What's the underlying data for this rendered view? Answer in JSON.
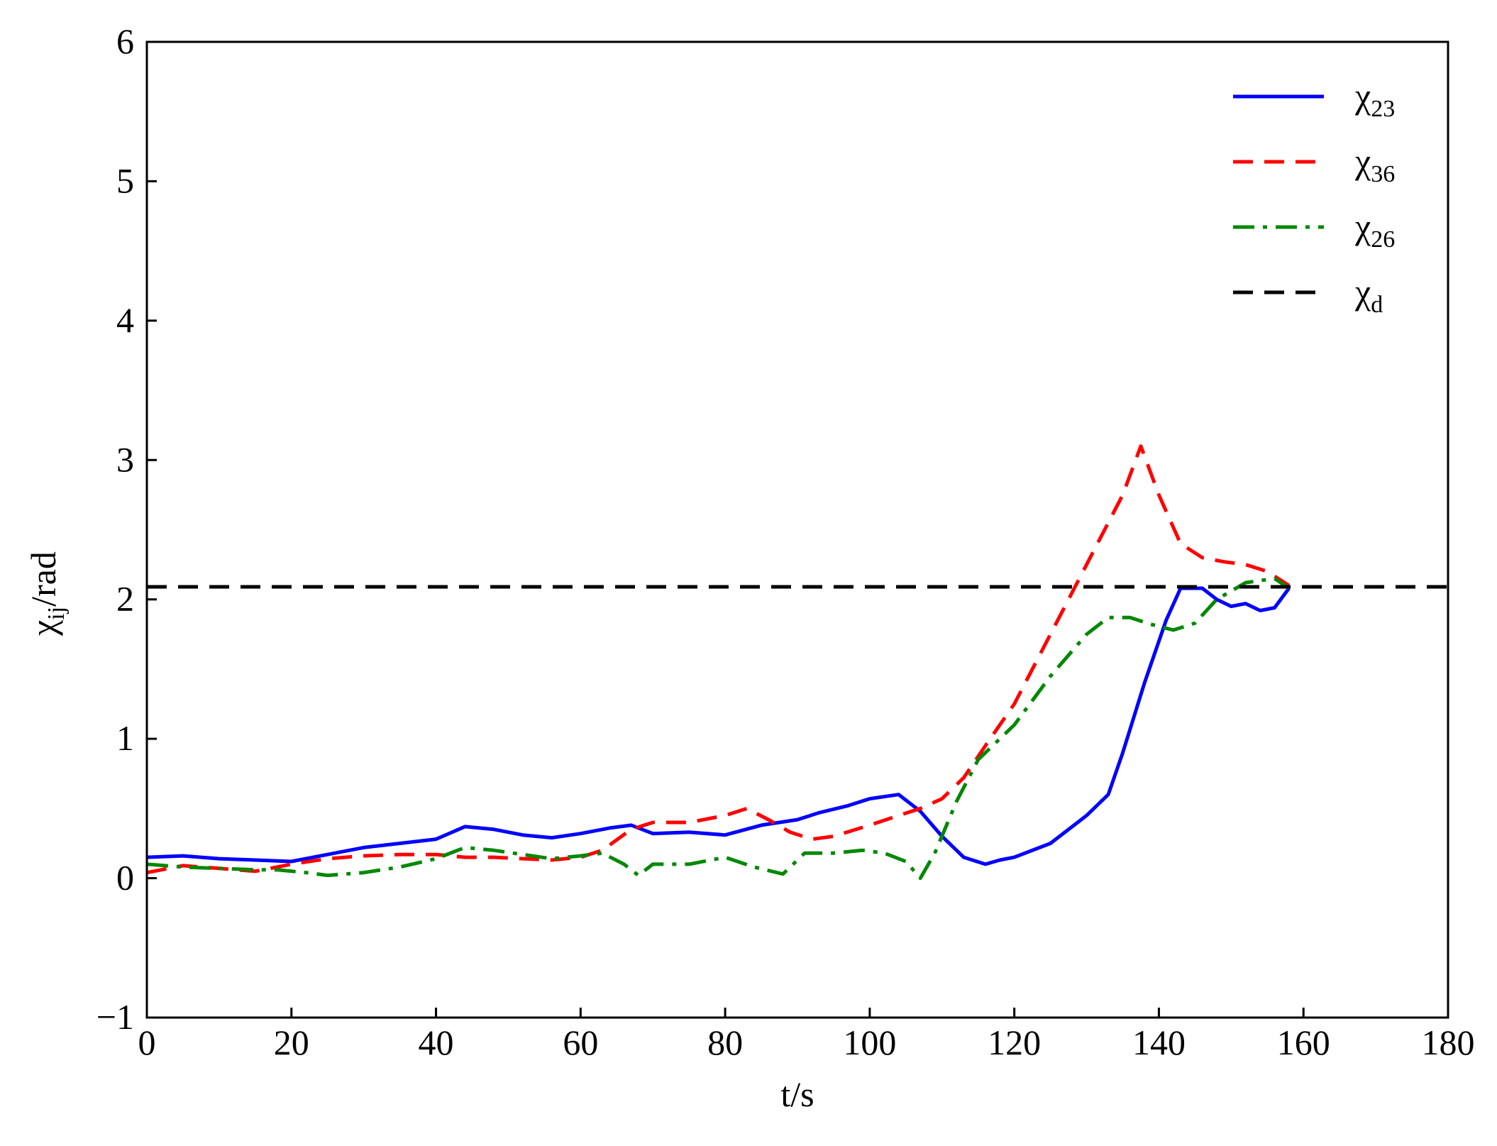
{
  "chart_data": {
    "type": "line",
    "xlabel": "t/s",
    "ylabel": {
      "base": "χ",
      "sub": "ij",
      "suffix": "/rad"
    },
    "xlim": [
      0,
      180
    ],
    "ylim": [
      -1,
      6
    ],
    "xticks": [
      0,
      20,
      40,
      60,
      80,
      100,
      120,
      140,
      160,
      180
    ],
    "yticks": [
      -1,
      0,
      1,
      2,
      3,
      4,
      5,
      6
    ],
    "grid": false,
    "legend_position": "top-right",
    "series": [
      {
        "name": "χ23",
        "label_base": "χ",
        "label_sub": "23",
        "color": "#0000ff",
        "style": "solid",
        "x": [
          0,
          5,
          10,
          15,
          20,
          25,
          30,
          35,
          40,
          44,
          48,
          52,
          56,
          60,
          64,
          67,
          70,
          75,
          80,
          85,
          90,
          93,
          97,
          100,
          104,
          107,
          110,
          113,
          116,
          118,
          120,
          125,
          130,
          133,
          135,
          138,
          141,
          143,
          146,
          148,
          150,
          152,
          154,
          156,
          158
        ],
        "y": [
          0.15,
          0.16,
          0.14,
          0.13,
          0.12,
          0.17,
          0.22,
          0.25,
          0.28,
          0.37,
          0.35,
          0.31,
          0.29,
          0.32,
          0.36,
          0.38,
          0.32,
          0.33,
          0.31,
          0.38,
          0.42,
          0.47,
          0.52,
          0.57,
          0.6,
          0.48,
          0.3,
          0.15,
          0.1,
          0.13,
          0.15,
          0.25,
          0.45,
          0.6,
          0.9,
          1.4,
          1.85,
          2.08,
          2.08,
          2.0,
          1.95,
          1.97,
          1.92,
          1.94,
          2.08
        ]
      },
      {
        "name": "χ36",
        "label_base": "χ",
        "label_sub": "36",
        "color": "#ff0000",
        "style": "dashed",
        "x": [
          0,
          5,
          10,
          15,
          20,
          25,
          30,
          35,
          40,
          44,
          48,
          52,
          56,
          60,
          63,
          67,
          70,
          75,
          80,
          83,
          86,
          89,
          92,
          95,
          100,
          104,
          107,
          110,
          113,
          116,
          120,
          124,
          128,
          132,
          135,
          137.5,
          140,
          143,
          146,
          149,
          152,
          155,
          158
        ],
        "y": [
          0.04,
          0.09,
          0.07,
          0.05,
          0.1,
          0.14,
          0.16,
          0.17,
          0.17,
          0.15,
          0.15,
          0.14,
          0.13,
          0.15,
          0.2,
          0.35,
          0.4,
          0.4,
          0.45,
          0.5,
          0.42,
          0.33,
          0.28,
          0.3,
          0.38,
          0.45,
          0.5,
          0.57,
          0.72,
          0.95,
          1.25,
          1.65,
          2.05,
          2.45,
          2.75,
          3.1,
          2.75,
          2.4,
          2.3,
          2.27,
          2.25,
          2.2,
          2.1
        ]
      },
      {
        "name": "χ26",
        "label_base": "χ",
        "label_sub": "26",
        "color": "#008800",
        "style": "dashdot",
        "x": [
          0,
          5,
          10,
          15,
          18,
          22,
          25,
          30,
          35,
          40,
          44,
          48,
          52,
          56,
          60,
          63,
          66,
          68,
          70,
          75,
          80,
          84,
          88,
          91,
          95,
          99,
          102,
          105,
          107,
          109,
          112,
          115,
          120,
          125,
          130,
          133,
          136,
          139,
          142,
          145,
          148,
          152,
          156,
          158
        ],
        "y": [
          0.1,
          0.08,
          0.07,
          0.06,
          0.06,
          0.04,
          0.02,
          0.04,
          0.08,
          0.14,
          0.22,
          0.2,
          0.17,
          0.14,
          0.16,
          0.18,
          0.1,
          0.02,
          0.1,
          0.1,
          0.15,
          0.08,
          0.03,
          0.18,
          0.18,
          0.2,
          0.18,
          0.12,
          0.0,
          0.18,
          0.55,
          0.85,
          1.1,
          1.45,
          1.75,
          1.87,
          1.87,
          1.82,
          1.78,
          1.83,
          2.0,
          2.12,
          2.15,
          2.08
        ]
      },
      {
        "name": "χd",
        "label_base": "χ",
        "label_sub": "d",
        "color": "#000000",
        "style": "dashed",
        "x": [
          0,
          180
        ],
        "y": [
          2.09,
          2.09
        ]
      }
    ]
  }
}
